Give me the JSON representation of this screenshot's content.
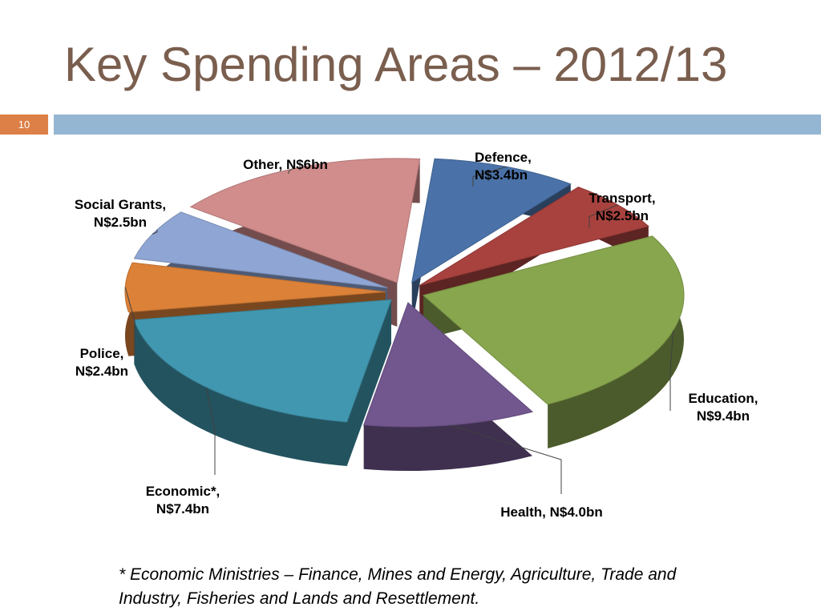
{
  "slide": {
    "title": "Key Spending Areas – 2012/13",
    "number": "10",
    "footnote": "* Economic Ministries – Finance, Mines and Energy, Agriculture, Trade and Industry, Fisheries and Lands and Resettlement."
  },
  "chart_data": {
    "type": "pie",
    "title": "",
    "unit": "N$bn",
    "slices": [
      {
        "label": [
          "Defence,",
          "N$3.4bn"
        ],
        "name": "Defence",
        "value": 3.4,
        "color": "#4a72a8"
      },
      {
        "label": [
          "Transport,",
          "N$2.5bn"
        ],
        "name": "Transport",
        "value": 2.5,
        "color": "#a8423e"
      },
      {
        "label": [
          "Education,",
          "N$9.4bn"
        ],
        "name": "Education",
        "value": 9.4,
        "color": "#88a64e"
      },
      {
        "label": [
          "Health, N$4.0bn"
        ],
        "name": "Health",
        "value": 4.0,
        "color": "#72578f"
      },
      {
        "label": [
          "Economic*,",
          "N$7.4bn"
        ],
        "name": "Economic*",
        "value": 7.4,
        "color": "#4197af"
      },
      {
        "label": [
          "Police,",
          "N$2.4bn"
        ],
        "name": "Police",
        "value": 2.4,
        "color": "#dc8138"
      },
      {
        "label": [
          "Social Grants,",
          "N$2.5bn"
        ],
        "name": "Social Grants",
        "value": 2.5,
        "color": "#8fa6d4"
      },
      {
        "label": [
          "Other, N$6bn"
        ],
        "name": "Other",
        "value": 6,
        "color": "#d18c8c"
      }
    ],
    "legend": "none",
    "data_labels": "outside with leader lines"
  }
}
